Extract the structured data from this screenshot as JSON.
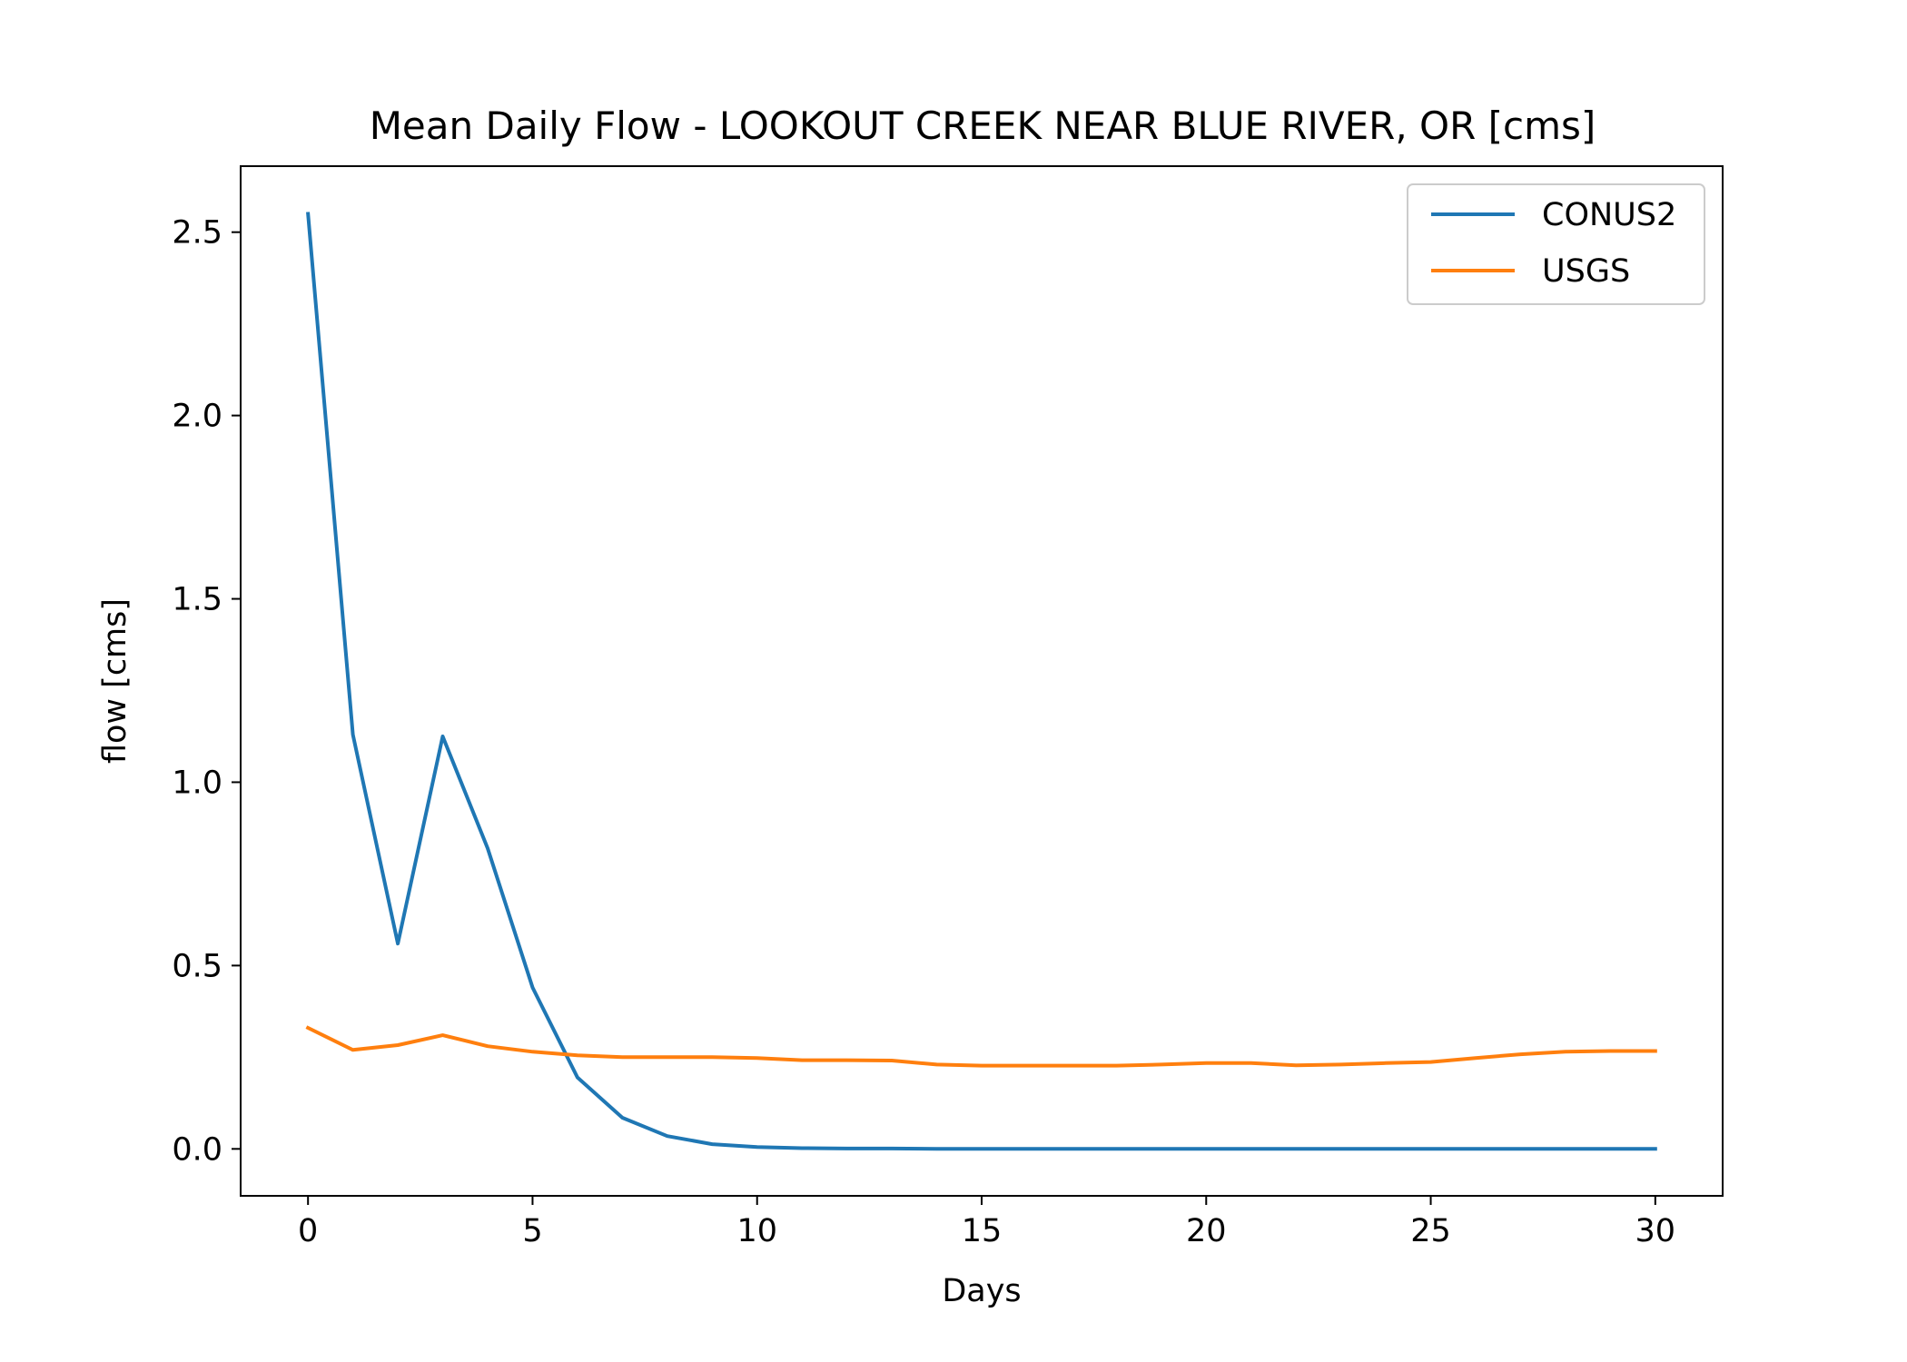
{
  "chart_data": {
    "type": "line",
    "title": "Mean Daily Flow - LOOKOUT CREEK NEAR BLUE RIVER, OR [cms]",
    "xlabel": "Days",
    "ylabel": "flow [cms]",
    "xlim": [
      -1.5,
      31.5
    ],
    "ylim": [
      -0.128,
      2.68
    ],
    "xticks": [
      0,
      5,
      10,
      15,
      20,
      25,
      30
    ],
    "xtick_labels": [
      "0",
      "5",
      "10",
      "15",
      "20",
      "25",
      "30"
    ],
    "yticks": [
      0.0,
      0.5,
      1.0,
      1.5,
      2.0,
      2.5
    ],
    "ytick_labels": [
      "0.0",
      "0.5",
      "1.0",
      "1.5",
      "2.0",
      "2.5"
    ],
    "grid": false,
    "legend_position": "top-right",
    "x": [
      0,
      1,
      2,
      3,
      4,
      5,
      6,
      7,
      8,
      9,
      10,
      11,
      12,
      13,
      14,
      15,
      16,
      17,
      18,
      19,
      20,
      21,
      22,
      23,
      24,
      25,
      26,
      27,
      28,
      29,
      30
    ],
    "series": [
      {
        "name": "CONUS2",
        "color": "#1f77b4",
        "values": [
          2.55,
          1.13,
          0.56,
          1.125,
          0.82,
          0.44,
          0.195,
          0.085,
          0.035,
          0.013,
          0.005,
          0.002,
          0.001,
          0.001,
          0.0,
          0.0,
          0.0,
          0.0,
          0.0,
          0.0,
          0.0,
          0.0,
          0.0,
          0.0,
          0.0,
          0.0,
          0.0,
          0.0,
          0.0,
          0.0,
          0.0
        ]
      },
      {
        "name": "USGS",
        "color": "#ff7f0e",
        "values": [
          0.33,
          0.27,
          0.283,
          0.31,
          0.28,
          0.265,
          0.255,
          0.25,
          0.25,
          0.25,
          0.248,
          0.242,
          0.242,
          0.241,
          0.23,
          0.227,
          0.227,
          0.227,
          0.227,
          0.23,
          0.234,
          0.234,
          0.228,
          0.23,
          0.234,
          0.237,
          0.248,
          0.258,
          0.265,
          0.267,
          0.267
        ]
      }
    ]
  }
}
